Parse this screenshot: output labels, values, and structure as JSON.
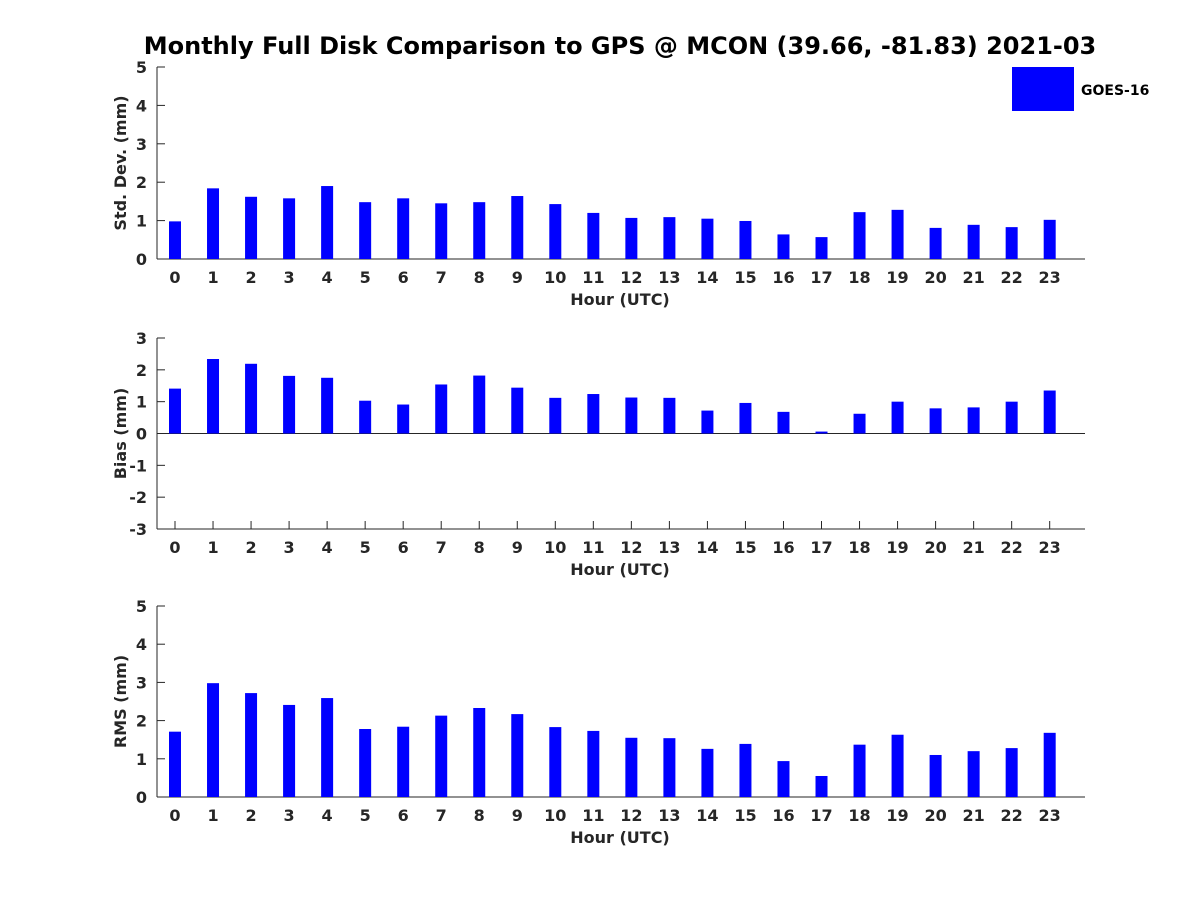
{
  "chart_data": {
    "title": "Monthly Full Disk Comparison to GPS @ MCON (39.66, -81.83) 2021-03",
    "bar_color": "#0000ff",
    "legend": {
      "label": "GOES-16",
      "placement": "top-right"
    },
    "panels": [
      {
        "type": "bar",
        "ylabel": "Std. Dev. (mm)",
        "xlabel": "Hour (UTC)",
        "ylim": [
          0,
          5
        ],
        "yticks": [
          0,
          1,
          2,
          3,
          4,
          5
        ],
        "categories": [
          0,
          1,
          2,
          3,
          4,
          5,
          6,
          7,
          8,
          9,
          10,
          11,
          12,
          13,
          14,
          15,
          16,
          17,
          18,
          19,
          20,
          21,
          22,
          23
        ],
        "series": [
          {
            "name": "GOES-16",
            "values": [
              0.98,
              1.84,
              1.62,
              1.58,
              1.9,
              1.48,
              1.58,
              1.45,
              1.48,
              1.64,
              1.43,
              1.2,
              1.07,
              1.09,
              1.05,
              0.99,
              0.64,
              0.57,
              1.22,
              1.28,
              0.81,
              0.89,
              0.83,
              1.02
            ]
          }
        ]
      },
      {
        "type": "bar",
        "ylabel": "Bias (mm)",
        "xlabel": "Hour (UTC)",
        "ylim": [
          -3,
          3
        ],
        "yticks": [
          -3,
          -2,
          -1,
          0,
          1,
          2,
          3
        ],
        "categories": [
          0,
          1,
          2,
          3,
          4,
          5,
          6,
          7,
          8,
          9,
          10,
          11,
          12,
          13,
          14,
          15,
          16,
          17,
          18,
          19,
          20,
          21,
          22,
          23
        ],
        "series": [
          {
            "name": "GOES-16",
            "values": [
              1.41,
              2.34,
              2.19,
              1.81,
              1.75,
              1.03,
              0.91,
              1.54,
              1.82,
              1.44,
              1.12,
              1.24,
              1.13,
              1.12,
              0.72,
              0.96,
              0.68,
              0.06,
              0.62,
              1.0,
              0.79,
              0.82,
              1.0,
              1.35
            ]
          }
        ]
      },
      {
        "type": "bar",
        "ylabel": "RMS (mm)",
        "xlabel": "Hour (UTC)",
        "ylim": [
          0,
          5
        ],
        "yticks": [
          0,
          1,
          2,
          3,
          4,
          5
        ],
        "categories": [
          0,
          1,
          2,
          3,
          4,
          5,
          6,
          7,
          8,
          9,
          10,
          11,
          12,
          13,
          14,
          15,
          16,
          17,
          18,
          19,
          20,
          21,
          22,
          23
        ],
        "series": [
          {
            "name": "GOES-16",
            "values": [
              1.71,
              2.98,
              2.72,
              2.41,
              2.59,
              1.78,
              1.84,
              2.13,
              2.33,
              2.17,
              1.83,
              1.73,
              1.55,
              1.54,
              1.26,
              1.39,
              0.94,
              0.55,
              1.37,
              1.63,
              1.1,
              1.2,
              1.28,
              1.68
            ]
          }
        ]
      }
    ]
  }
}
